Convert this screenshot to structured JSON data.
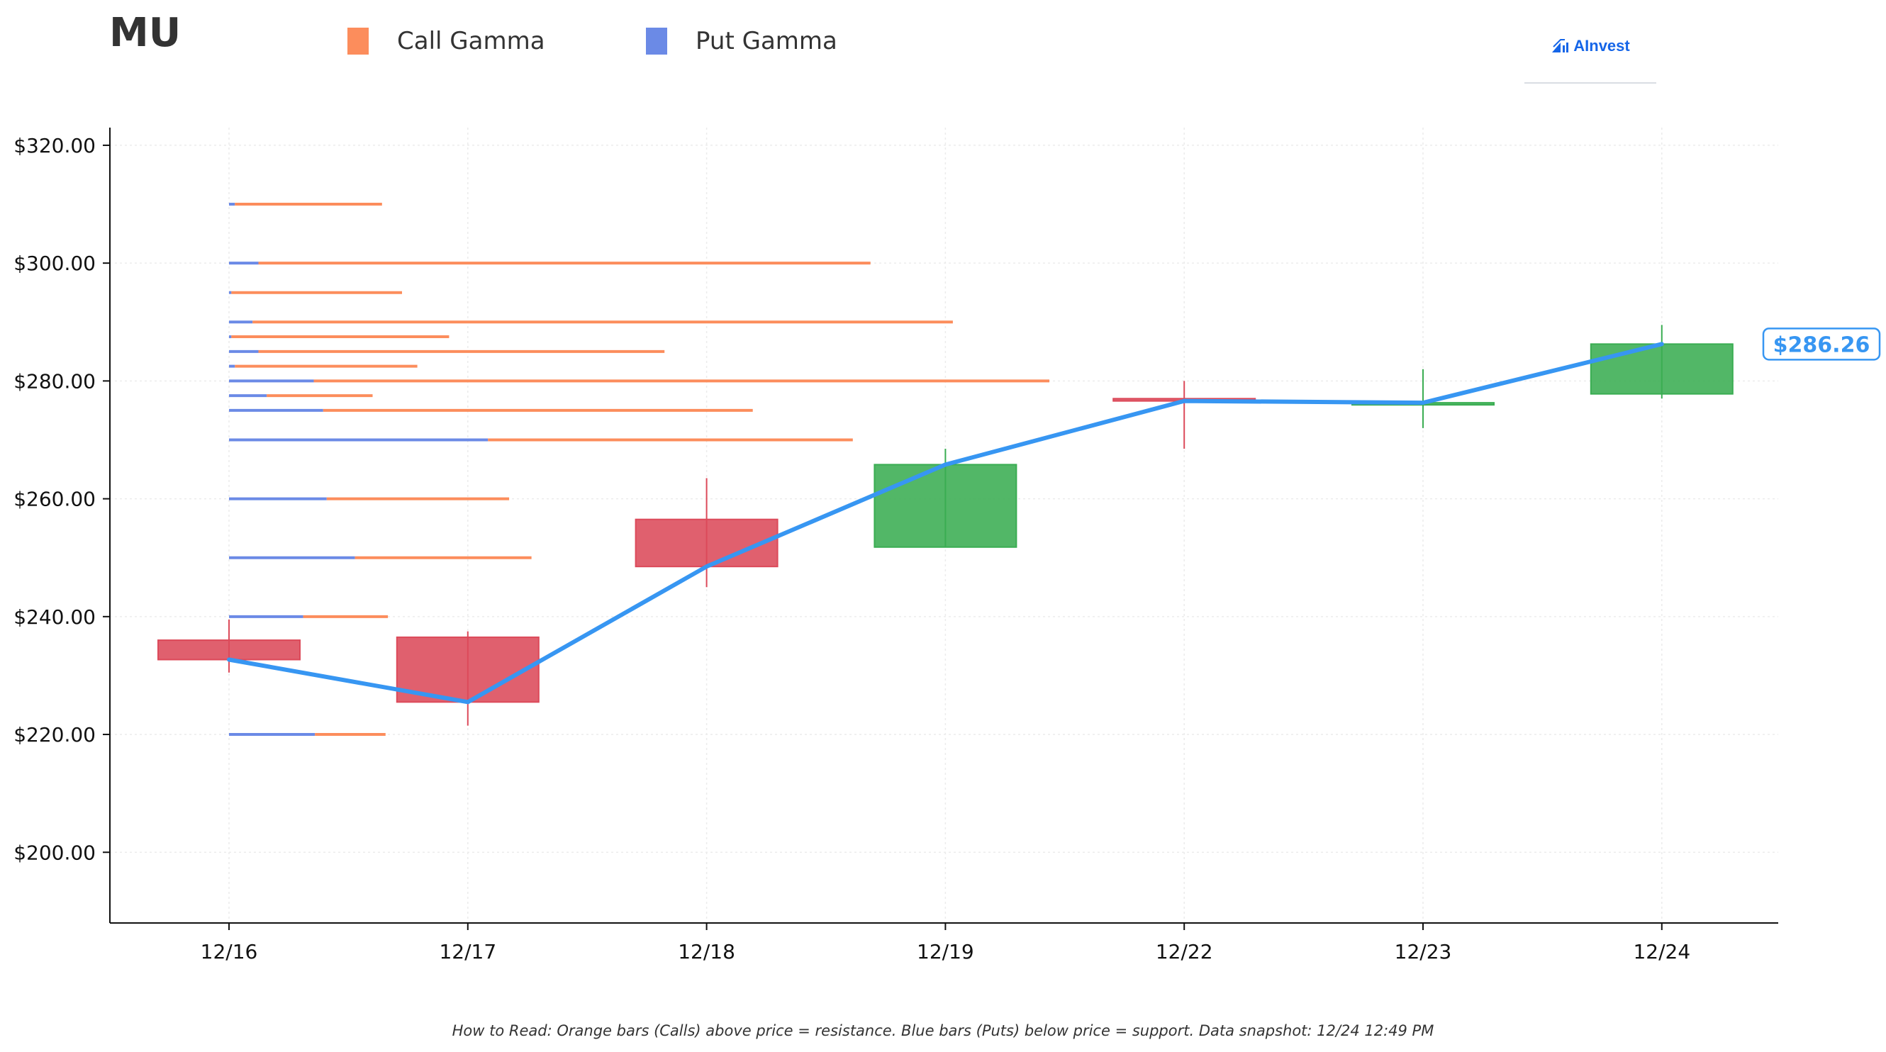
{
  "header": {
    "ticker": "MU",
    "brand": "AInvest",
    "legend": [
      {
        "label": "Call Gamma",
        "color": "#fc8d5c"
      },
      {
        "label": "Put Gamma",
        "color": "#6b8ae6"
      }
    ]
  },
  "footer": {
    "note": "How to Read: Orange bars (Calls) above price = resistance. Blue bars (Puts) below price = support. Data snapshot: 12/24 12:49 PM"
  },
  "chart_data": {
    "type": "candlestick",
    "ylim": [
      188,
      323
    ],
    "yticks": [
      200,
      220,
      240,
      260,
      280,
      300,
      320
    ],
    "ytick_labels": [
      "$200.00",
      "$220.00",
      "$240.00",
      "$260.00",
      "$280.00",
      "$300.00",
      "$320.00"
    ],
    "grid": true,
    "categories": [
      "12/16",
      "12/17",
      "12/18",
      "12/19",
      "12/22",
      "12/23",
      "12/24"
    ],
    "candles": [
      {
        "date": "12/16",
        "open": 236.0,
        "high": 239.5,
        "low": 230.5,
        "close": 232.7
      },
      {
        "date": "12/17",
        "open": 236.5,
        "high": 237.5,
        "low": 221.5,
        "close": 225.5
      },
      {
        "date": "12/18",
        "open": 256.5,
        "high": 263.5,
        "low": 245.0,
        "close": 248.5
      },
      {
        "date": "12/19",
        "open": 251.8,
        "high": 268.5,
        "low": 251.8,
        "close": 265.8
      },
      {
        "date": "12/22",
        "open": 277.0,
        "high": 280.0,
        "low": 268.5,
        "close": 276.6
      },
      {
        "date": "12/23",
        "open": 276.0,
        "high": 282.0,
        "low": 272.0,
        "close": 276.3
      },
      {
        "date": "12/24",
        "open": 277.8,
        "high": 289.5,
        "low": 277.0,
        "close": 286.26
      }
    ],
    "close_line": [
      232.7,
      225.5,
      248.5,
      265.8,
      276.6,
      276.3,
      286.26
    ],
    "last_price_label": "$286.26",
    "gamma_levels": [
      {
        "strike": 310,
        "put": 0.05,
        "call": 1.25
      },
      {
        "strike": 300,
        "put": 0.25,
        "call": 5.2
      },
      {
        "strike": 295,
        "put": 0.02,
        "call": 1.45
      },
      {
        "strike": 290,
        "put": 0.2,
        "call": 5.95
      },
      {
        "strike": 287.5,
        "put": 0.02,
        "call": 1.85
      },
      {
        "strike": 285,
        "put": 0.25,
        "call": 3.45
      },
      {
        "strike": 282.5,
        "put": 0.05,
        "call": 1.55
      },
      {
        "strike": 280,
        "put": 0.72,
        "call": 6.25
      },
      {
        "strike": 277.5,
        "put": 0.32,
        "call": 0.9
      },
      {
        "strike": 275,
        "put": 0.8,
        "call": 3.65
      },
      {
        "strike": 270,
        "put": 2.2,
        "call": 3.1
      },
      {
        "strike": 260,
        "put": 0.83,
        "call": 1.55
      },
      {
        "strike": 250,
        "put": 1.07,
        "call": 1.5
      },
      {
        "strike": 240,
        "put": 0.63,
        "call": 0.72
      },
      {
        "strike": 220,
        "put": 0.73,
        "call": 0.6
      }
    ],
    "colors": {
      "up": "#3aad52",
      "down": "#dc4a5a",
      "call": "#fc8d5c",
      "put": "#6b8ae6",
      "close_line": "#3796f2",
      "axis": "#111111",
      "grid": "#ececec"
    }
  }
}
